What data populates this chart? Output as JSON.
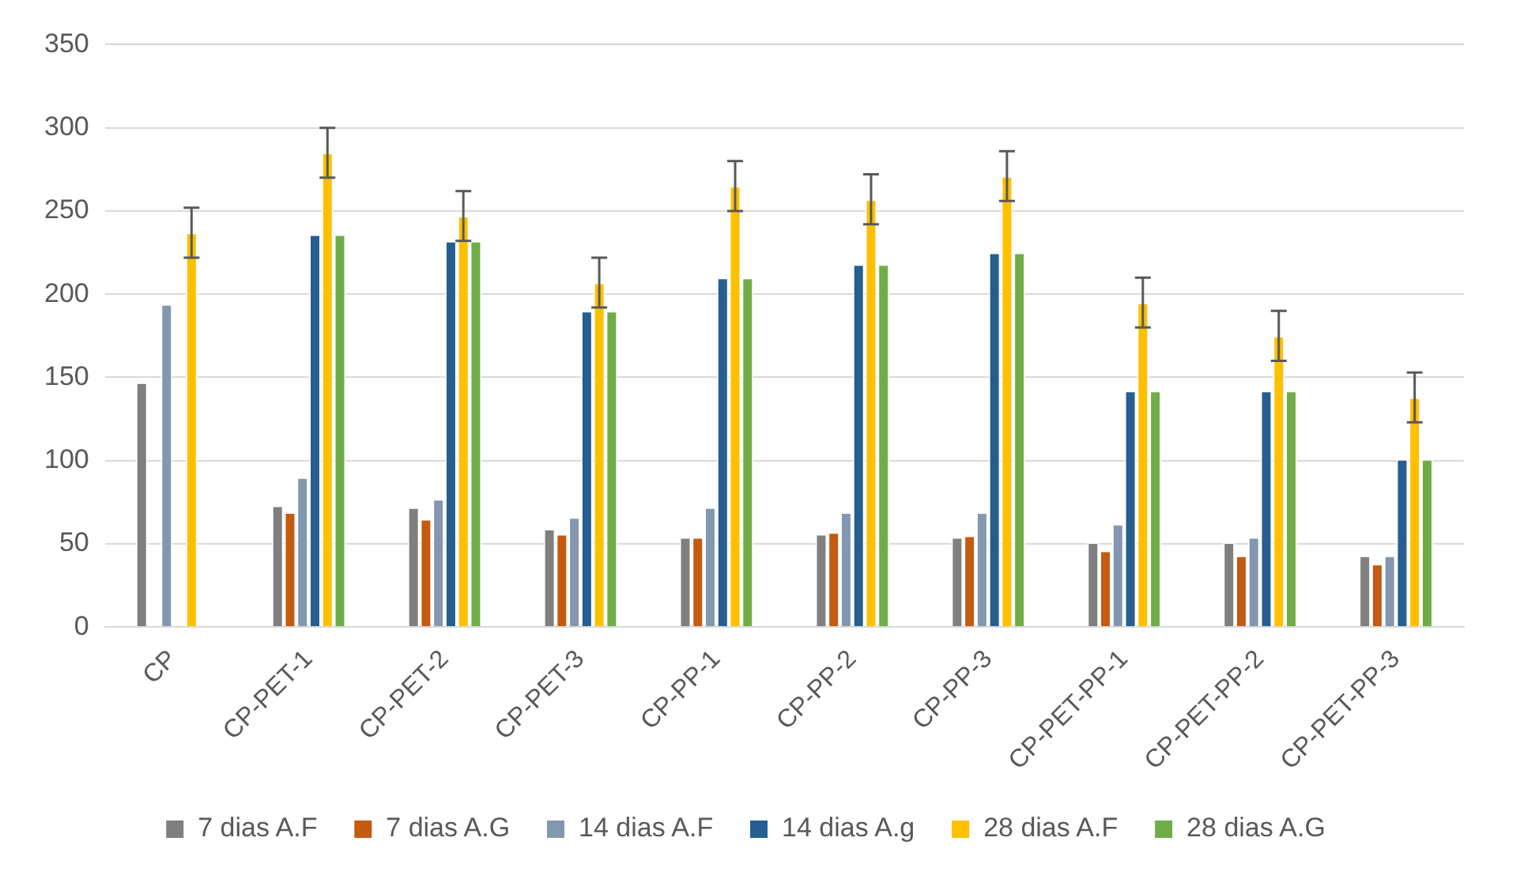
{
  "chart_data": {
    "type": "bar",
    "categories": [
      "CP",
      "CP-PET-1",
      "CP-PET-2",
      "CP-PET-3",
      "CP-PP-1",
      "CP-PP-2",
      "CP-PP-3",
      "CP-PET-PP-1",
      "CP-PET-PP-2",
      "CP-PET-PP-3"
    ],
    "series": [
      {
        "name": "7 dias A.F",
        "color": "#7f7f7f",
        "values": [
          147,
          73,
          72,
          59,
          54,
          56,
          54,
          51,
          51,
          43
        ]
      },
      {
        "name": "7 dias A.G",
        "color": "#c55a11",
        "values": [
          null,
          69,
          65,
          56,
          54,
          57,
          55,
          46,
          43,
          38
        ]
      },
      {
        "name": "14 dias A.F",
        "color": "#8497b0",
        "values": [
          194,
          90,
          77,
          66,
          72,
          69,
          69,
          62,
          54,
          43
        ]
      },
      {
        "name": "14 dias A.g",
        "color": "#255e91",
        "values": [
          null,
          236,
          232,
          190,
          210,
          218,
          225,
          142,
          142,
          101
        ]
      },
      {
        "name": "28 dias A.F",
        "color": "#ffc000",
        "values": [
          237,
          285,
          247,
          207,
          265,
          257,
          271,
          195,
          175,
          138
        ],
        "errors": [
          15,
          15,
          15,
          15,
          15,
          15,
          15,
          15,
          15,
          15
        ]
      },
      {
        "name": "28 dias A.G",
        "color": "#70ad47",
        "values": [
          null,
          236,
          232,
          190,
          210,
          218,
          225,
          142,
          142,
          101
        ]
      }
    ],
    "ylim": [
      0,
      350
    ],
    "yticks": [
      0,
      50,
      100,
      150,
      200,
      250,
      300,
      350
    ],
    "grid": "y",
    "legend": "bottom"
  }
}
